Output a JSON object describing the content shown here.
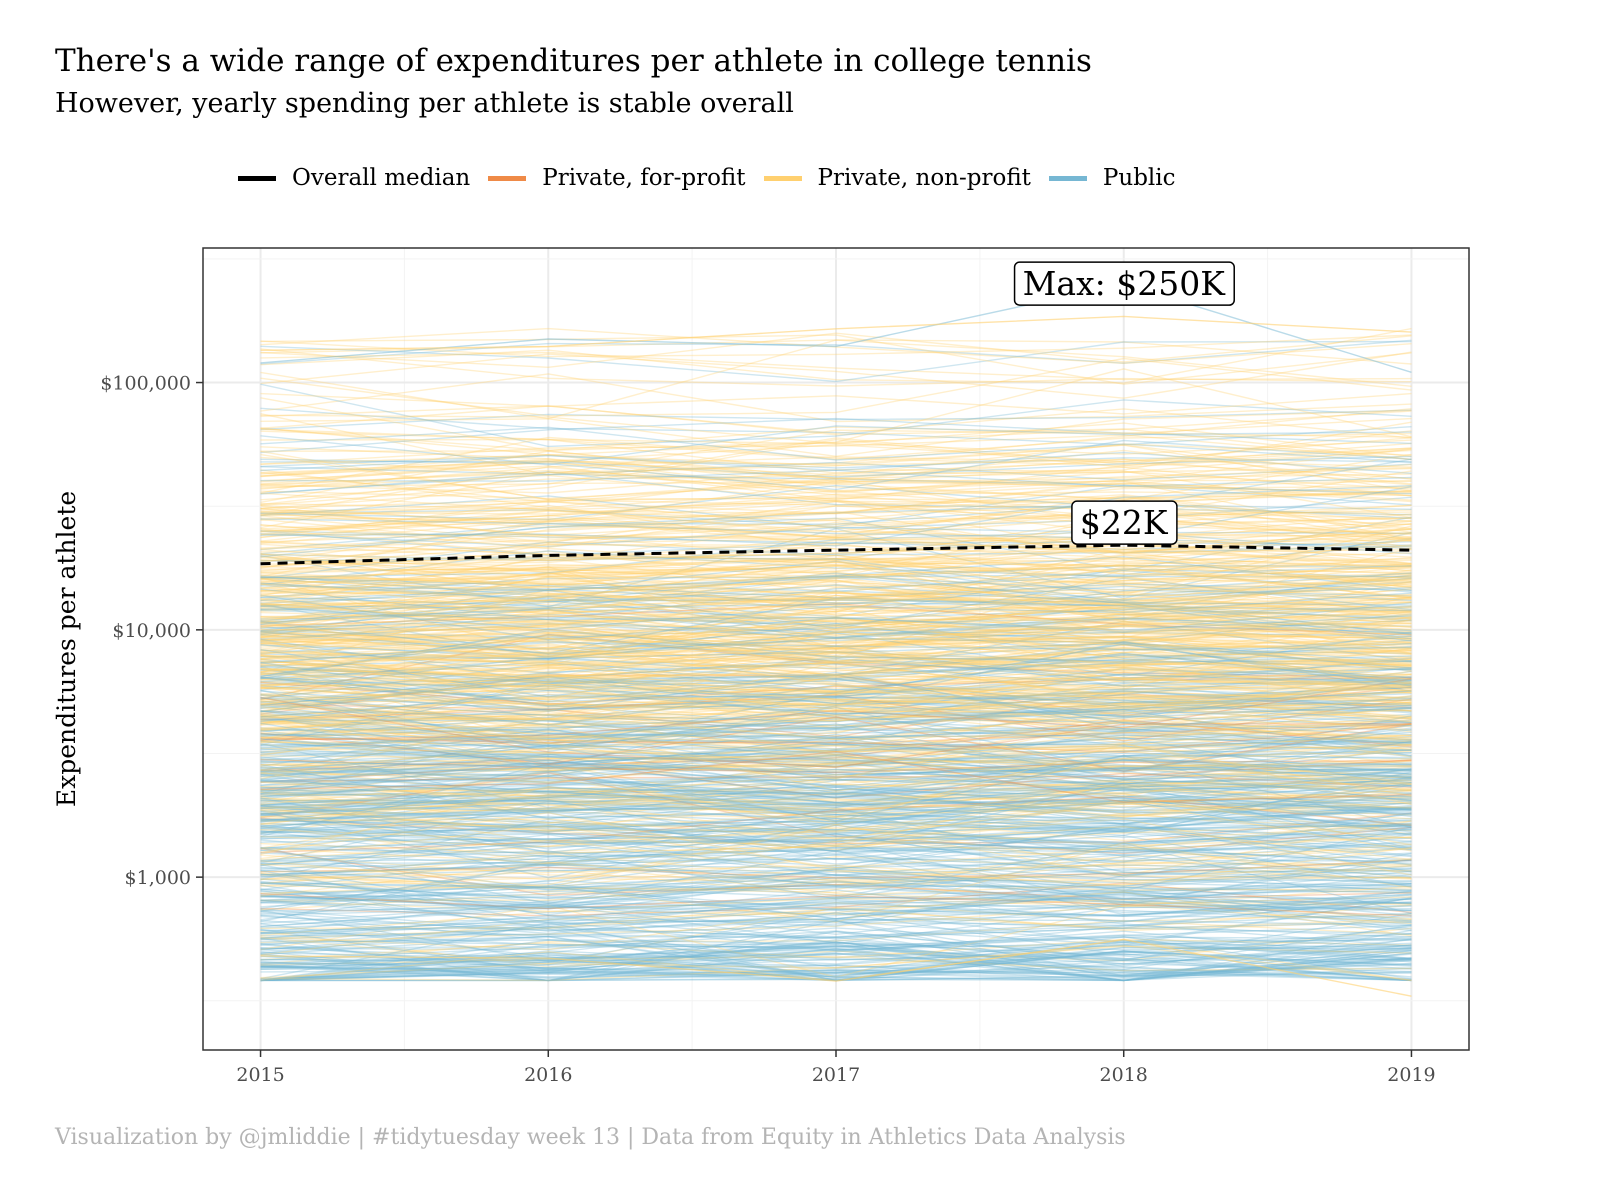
{
  "header": {
    "title": "There's a wide range of expenditures per athlete in college tennis",
    "subtitle": "However, yearly spending per athlete is stable overall"
  },
  "caption": "Visualization by @jmliddie | #tidytuesday week 13 | Data from Equity in Athletics Data Analysis",
  "legend": [
    {
      "label": "Overall median",
      "color": "#000000"
    },
    {
      "label": "Private, for-profit",
      "color": "#EF8A47"
    },
    {
      "label": "Private, non-profit",
      "color": "#FFD06F"
    },
    {
      "label": "Public",
      "color": "#76B7D3"
    }
  ],
  "chart_data": {
    "type": "line",
    "ylabel": "Expenditures per athlete",
    "xlabel": "",
    "x": [
      2015,
      2016,
      2017,
      2018,
      2019
    ],
    "x_tick_labels": [
      "2015",
      "2016",
      "2017",
      "2018",
      "2019"
    ],
    "xlim": [
      2014.8,
      2019.2
    ],
    "y_scale": "log",
    "ylim": [
      200,
      350000
    ],
    "y_ticks": [
      1000,
      10000,
      100000
    ],
    "y_tick_labels": [
      "$1,000",
      "$10,000",
      "$100,000"
    ],
    "grid": true,
    "legend_position": "top",
    "median_series": {
      "name": "Overall median",
      "values": [
        18500,
        20000,
        21000,
        22000,
        21000
      ],
      "style": "dashed",
      "color": "#000000"
    },
    "school_series_note": "Hundreds of individual school lines spanning roughly $400 to $250,000 per athlete, colored by sector",
    "school_series_range": {
      "min": 330,
      "max": 250000
    },
    "sector_colors": {
      "Public": "#76B7D3",
      "Private, non-profit": "#FFD06F",
      "Private, for-profit": "#EF8A47"
    },
    "annotations": [
      {
        "text": "Max: $250K",
        "x": 2018,
        "y": 250000
      },
      {
        "text": "$22K",
        "x": 2018,
        "y": 22000
      }
    ]
  }
}
